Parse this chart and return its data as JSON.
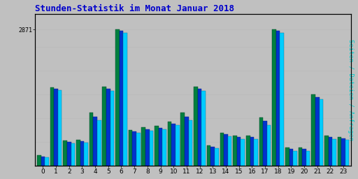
{
  "title": "Stunden-Statistik im Monat Januar 2018",
  "ylabel": "Seiten / Dateien / Anfragen",
  "ytick_label": "2871",
  "hours": [
    0,
    1,
    2,
    3,
    4,
    5,
    6,
    7,
    8,
    9,
    10,
    11,
    12,
    13,
    14,
    15,
    16,
    17,
    18,
    19,
    20,
    21,
    22,
    23
  ],
  "anfragen": [
    220,
    1650,
    530,
    545,
    1120,
    1670,
    2871,
    760,
    810,
    840,
    930,
    1120,
    1670,
    430,
    700,
    640,
    635,
    1020,
    2871,
    390,
    390,
    1500,
    640,
    610
  ],
  "dateien": [
    200,
    1620,
    510,
    515,
    1040,
    1620,
    2840,
    730,
    775,
    800,
    890,
    1040,
    1620,
    400,
    665,
    605,
    600,
    940,
    2840,
    355,
    355,
    1450,
    600,
    580
  ],
  "seiten": [
    175,
    1590,
    480,
    485,
    960,
    1575,
    2800,
    700,
    745,
    770,
    855,
    955,
    1580,
    365,
    625,
    565,
    560,
    855,
    2800,
    315,
    315,
    1395,
    560,
    548
  ],
  "color_anfragen": "#008040",
  "color_dateien": "#0033CC",
  "color_seiten": "#00CCFF",
  "background_color": "#C0C0C0",
  "plot_bg_color": "#C0C0C0",
  "title_color": "#0000CC",
  "ylabel_color": "#00CCCC",
  "ylim": [
    0,
    3200
  ],
  "yticks": [
    2871
  ],
  "grid_color": "#BBBBBB",
  "grid_levels": [
    500,
    1000,
    1500,
    2000,
    2500,
    2871
  ]
}
